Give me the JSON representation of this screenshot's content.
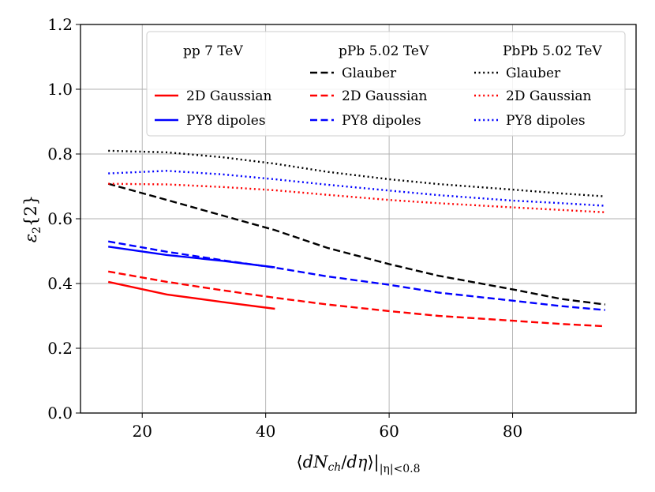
{
  "chart_data": {
    "type": "line",
    "title": "",
    "xlabel": "⟨dN_ch/dη⟩|_{|η|<0.8}",
    "ylabel": "ε₂{2}",
    "xlim": [
      10,
      100
    ],
    "ylim": [
      0.0,
      1.2
    ],
    "xticks": [
      20,
      40,
      60,
      80
    ],
    "yticks": [
      0.0,
      0.2,
      0.4,
      0.6,
      0.8,
      1.0,
      1.2
    ],
    "xtick_labels": [
      "20",
      "40",
      "60",
      "80"
    ],
    "ytick_labels": [
      "0.0",
      "0.2",
      "0.4",
      "0.6",
      "0.8",
      "1.0",
      "1.2"
    ],
    "grid": true,
    "legend_position": "top-right",
    "legend_columns": [
      {
        "title": "pp 7 TeV",
        "style": "solid"
      },
      {
        "title": "pPb 5.02 TeV",
        "style": "dashed"
      },
      {
        "title": "PbPb 5.02 TeV",
        "style": "dotted"
      }
    ],
    "colors": {
      "Glauber": "#000000",
      "2D Gaussian": "#ff0000",
      "PY8 dipoles": "#0000ff"
    },
    "series": [
      {
        "name": "2D Gaussian",
        "system": "pp 7 TeV",
        "style": "solid",
        "color": "#ff0000",
        "x": [
          14.5,
          24,
          33,
          41.5
        ],
        "y": [
          0.405,
          0.366,
          0.343,
          0.322
        ]
      },
      {
        "name": "PY8 dipoles",
        "system": "pp 7 TeV",
        "style": "solid",
        "color": "#0000ff",
        "x": [
          14.5,
          24,
          33,
          41.5
        ],
        "y": [
          0.514,
          0.488,
          0.47,
          0.45
        ]
      },
      {
        "name": "Glauber",
        "system": "pPb 5.02 TeV",
        "style": "dashed",
        "color": "#000000",
        "x": [
          14.5,
          24,
          33,
          41.5,
          50,
          60,
          68,
          80,
          88,
          95
        ],
        "y": [
          0.708,
          0.658,
          0.61,
          0.565,
          0.51,
          0.46,
          0.424,
          0.382,
          0.352,
          0.335
        ]
      },
      {
        "name": "2D Gaussian",
        "system": "pPb 5.02 TeV",
        "style": "dashed",
        "color": "#ff0000",
        "x": [
          14.5,
          24,
          33,
          41.5,
          50,
          60,
          68,
          80,
          88,
          95
        ],
        "y": [
          0.437,
          0.405,
          0.379,
          0.356,
          0.335,
          0.315,
          0.3,
          0.285,
          0.275,
          0.268
        ]
      },
      {
        "name": "PY8 dipoles",
        "system": "pPb 5.02 TeV",
        "style": "dashed",
        "color": "#0000ff",
        "x": [
          14.5,
          24,
          33,
          41.5,
          50,
          60,
          68,
          80,
          88,
          95
        ],
        "y": [
          0.53,
          0.498,
          0.472,
          0.449,
          0.422,
          0.396,
          0.372,
          0.347,
          0.33,
          0.318
        ]
      },
      {
        "name": "Glauber",
        "system": "PbPb 5.02 TeV",
        "style": "dotted",
        "color": "#000000",
        "x": [
          14.5,
          24,
          33,
          41.5,
          50,
          60,
          68,
          80,
          88,
          95
        ],
        "y": [
          0.81,
          0.805,
          0.79,
          0.77,
          0.745,
          0.722,
          0.707,
          0.69,
          0.678,
          0.669
        ]
      },
      {
        "name": "2D Gaussian",
        "system": "PbPb 5.02 TeV",
        "style": "dotted",
        "color": "#ff0000",
        "x": [
          14.5,
          24,
          33,
          41.5,
          50,
          60,
          68,
          80,
          88,
          95
        ],
        "y": [
          0.708,
          0.706,
          0.698,
          0.688,
          0.674,
          0.658,
          0.648,
          0.635,
          0.627,
          0.62
        ]
      },
      {
        "name": "PY8 dipoles",
        "system": "PbPb 5.02 TeV",
        "style": "dotted",
        "color": "#0000ff",
        "x": [
          14.5,
          24,
          33,
          41.5,
          50,
          60,
          68,
          80,
          88,
          95
        ],
        "y": [
          0.74,
          0.748,
          0.737,
          0.722,
          0.705,
          0.687,
          0.673,
          0.656,
          0.648,
          0.64
        ]
      }
    ]
  }
}
